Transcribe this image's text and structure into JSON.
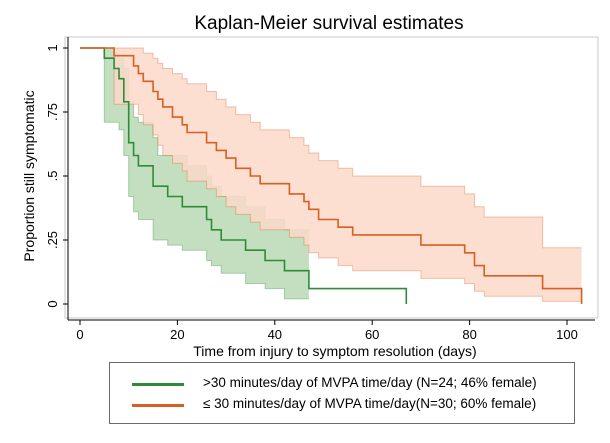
{
  "chart_data": {
    "type": "line",
    "subtype": "kaplan-meier step curves with confidence bands",
    "title": "Kaplan-Meier survival estimates",
    "xlabel": "Time from injury to symptom resolution (days)",
    "ylabel": "Proportion still symptomatic",
    "xlim": [
      0,
      104
    ],
    "ylim": [
      0,
      1
    ],
    "x_ticks": [
      0,
      20,
      40,
      60,
      80,
      100
    ],
    "y_ticks": [
      0,
      0.25,
      0.5,
      0.75,
      1
    ],
    "y_tick_labels": [
      "0",
      ".25",
      ".5",
      ".75",
      "1"
    ],
    "grid": false,
    "series": [
      {
        "name": ">30 minutes/day of MVPA time/day (N=24; 46% female)",
        "color": "#2e8b3a",
        "band_color": "#b9d9b4",
        "steps": [
          [
            0,
            1.0
          ],
          [
            5,
            0.96
          ],
          [
            7,
            0.92
          ],
          [
            8,
            0.88
          ],
          [
            9,
            0.79
          ],
          [
            10,
            0.63
          ],
          [
            11,
            0.58
          ],
          [
            12,
            0.54
          ],
          [
            15,
            0.46
          ],
          [
            18,
            0.42
          ],
          [
            21,
            0.38
          ],
          [
            22,
            0.38
          ],
          [
            26,
            0.33
          ],
          [
            27,
            0.29
          ],
          [
            29,
            0.25
          ],
          [
            34,
            0.21
          ],
          [
            37,
            0.21
          ],
          [
            38,
            0.17
          ],
          [
            42,
            0.13
          ],
          [
            46,
            0.13
          ],
          [
            47,
            0.06
          ],
          [
            67,
            0.0
          ]
        ],
        "end": 67,
        "upper": [
          [
            0,
            1.0
          ],
          [
            5,
            1.0
          ],
          [
            7,
            0.98
          ],
          [
            8,
            0.96
          ],
          [
            9,
            0.92
          ],
          [
            10,
            0.79
          ],
          [
            11,
            0.73
          ],
          [
            12,
            0.71
          ],
          [
            15,
            0.65
          ],
          [
            16,
            0.58
          ],
          [
            22,
            0.54
          ],
          [
            26,
            0.5
          ],
          [
            27,
            0.46
          ],
          [
            29,
            0.42
          ],
          [
            34,
            0.38
          ],
          [
            37,
            0.38
          ],
          [
            38,
            0.33
          ],
          [
            42,
            0.29
          ],
          [
            46,
            0.29
          ],
          [
            47,
            0.29
          ]
        ],
        "lower": [
          [
            0,
            1.0
          ],
          [
            5,
            0.71
          ],
          [
            7,
            0.71
          ],
          [
            8,
            0.68
          ],
          [
            9,
            0.58
          ],
          [
            10,
            0.42
          ],
          [
            11,
            0.36
          ],
          [
            12,
            0.33
          ],
          [
            15,
            0.25
          ],
          [
            18,
            0.23
          ],
          [
            21,
            0.21
          ],
          [
            22,
            0.21
          ],
          [
            26,
            0.17
          ],
          [
            27,
            0.15
          ],
          [
            29,
            0.12
          ],
          [
            34,
            0.08
          ],
          [
            38,
            0.06
          ],
          [
            42,
            0.02
          ],
          [
            47,
            0.02
          ]
        ],
        "band_end": 47
      },
      {
        "name": "≤ 30 minutes/day of MVPA time/day(N=30; 60% female)",
        "color": "#d85e22",
        "band_color": "#fcd9c9",
        "steps": [
          [
            0,
            1.0
          ],
          [
            7,
            0.97
          ],
          [
            11,
            0.93
          ],
          [
            12,
            0.9
          ],
          [
            13,
            0.87
          ],
          [
            15,
            0.83
          ],
          [
            16,
            0.8
          ],
          [
            17,
            0.77
          ],
          [
            19,
            0.73
          ],
          [
            21,
            0.7
          ],
          [
            22,
            0.67
          ],
          [
            26,
            0.63
          ],
          [
            28,
            0.6
          ],
          [
            30,
            0.57
          ],
          [
            32,
            0.53
          ],
          [
            35,
            0.5
          ],
          [
            37,
            0.47
          ],
          [
            43,
            0.43
          ],
          [
            46,
            0.4
          ],
          [
            47,
            0.37
          ],
          [
            49,
            0.33
          ],
          [
            53,
            0.3
          ],
          [
            56,
            0.27
          ],
          [
            68,
            0.27
          ],
          [
            70,
            0.23
          ],
          [
            79,
            0.2
          ],
          [
            81,
            0.15
          ],
          [
            83,
            0.11
          ],
          [
            92,
            0.11
          ],
          [
            95,
            0.06
          ],
          [
            100,
            0.06
          ],
          [
            103,
            0.0
          ]
        ],
        "end": 103,
        "upper": [
          [
            0,
            1.0
          ],
          [
            7,
            1.0
          ],
          [
            11,
            1.0
          ],
          [
            12,
            1.0
          ],
          [
            13,
            0.98
          ],
          [
            15,
            0.96
          ],
          [
            16,
            0.94
          ],
          [
            17,
            0.92
          ],
          [
            19,
            0.9
          ],
          [
            21,
            0.88
          ],
          [
            22,
            0.86
          ],
          [
            26,
            0.83
          ],
          [
            28,
            0.8
          ],
          [
            30,
            0.77
          ],
          [
            32,
            0.74
          ],
          [
            35,
            0.71
          ],
          [
            37,
            0.68
          ],
          [
            43,
            0.65
          ],
          [
            46,
            0.62
          ],
          [
            47,
            0.59
          ],
          [
            49,
            0.56
          ],
          [
            53,
            0.53
          ],
          [
            56,
            0.5
          ],
          [
            68,
            0.5
          ],
          [
            70,
            0.46
          ],
          [
            79,
            0.43
          ],
          [
            81,
            0.38
          ],
          [
            83,
            0.34
          ],
          [
            92,
            0.34
          ],
          [
            95,
            0.22
          ],
          [
            100,
            0.22
          ],
          [
            103,
            0.22
          ]
        ],
        "lower": [
          [
            0,
            1.0
          ],
          [
            7,
            0.78
          ],
          [
            11,
            0.78
          ],
          [
            12,
            0.74
          ],
          [
            13,
            0.7
          ],
          [
            15,
            0.66
          ],
          [
            16,
            0.62
          ],
          [
            17,
            0.58
          ],
          [
            19,
            0.55
          ],
          [
            21,
            0.52
          ],
          [
            22,
            0.48
          ],
          [
            26,
            0.45
          ],
          [
            28,
            0.42
          ],
          [
            30,
            0.38
          ],
          [
            32,
            0.35
          ],
          [
            35,
            0.32
          ],
          [
            37,
            0.29
          ],
          [
            43,
            0.26
          ],
          [
            46,
            0.23
          ],
          [
            47,
            0.2
          ],
          [
            49,
            0.18
          ],
          [
            53,
            0.15
          ],
          [
            56,
            0.13
          ],
          [
            68,
            0.13
          ],
          [
            70,
            0.1
          ],
          [
            79,
            0.08
          ],
          [
            81,
            0.05
          ],
          [
            83,
            0.03
          ],
          [
            92,
            0.03
          ],
          [
            95,
            0.01
          ],
          [
            100,
            0.01
          ],
          [
            103,
            0.01
          ]
        ],
        "band_end": 103
      }
    ],
    "legend_position": "bottom"
  }
}
